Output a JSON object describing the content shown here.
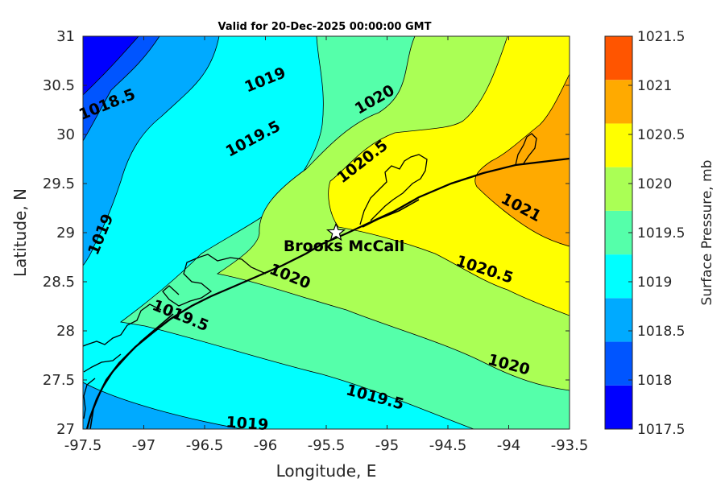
{
  "chart_data": {
    "type": "contour",
    "title": "Valid for 20-Dec-2025 00:00:00 GMT",
    "xlabel": "Longitude, E",
    "ylabel": "Latitude, N",
    "xlim": [
      -97.5,
      -93.5
    ],
    "ylim": [
      27,
      31
    ],
    "xticks": [
      "-97.5",
      "-97",
      "-96.5",
      "-96",
      "-95.5",
      "-95",
      "-94.5",
      "-94",
      "-93.5"
    ],
    "yticks": [
      "27",
      "27.5",
      "28",
      "28.5",
      "29",
      "29.5",
      "30",
      "30.5",
      "31"
    ],
    "contour_levels": [
      1017.5,
      1018,
      1018.5,
      1019,
      1019.5,
      1020,
      1020.5,
      1021,
      1021.5
    ],
    "contour_labels": [
      {
        "text": "1018.5",
        "lon": -97.3,
        "lat": 30.3,
        "angle": -22
      },
      {
        "text": "1019",
        "lon": -96.0,
        "lat": 30.55,
        "angle": -22
      },
      {
        "text": "1019.5",
        "lon": -96.1,
        "lat": 29.95,
        "angle": -28
      },
      {
        "text": "1020",
        "lon": -95.1,
        "lat": 30.35,
        "angle": -30
      },
      {
        "text": "1020.5",
        "lon": -95.2,
        "lat": 29.72,
        "angle": -38
      },
      {
        "text": "1021",
        "lon": -93.9,
        "lat": 29.25,
        "angle": 28
      },
      {
        "text": "1019",
        "lon": -97.35,
        "lat": 28.98,
        "angle": -68
      },
      {
        "text": "1020",
        "lon": -95.8,
        "lat": 28.55,
        "angle": 22
      },
      {
        "text": "1020.5",
        "lon": -94.2,
        "lat": 28.62,
        "angle": 18
      },
      {
        "text": "1019.5",
        "lon": -96.7,
        "lat": 28.15,
        "angle": 22
      },
      {
        "text": "1020",
        "lon": -94.0,
        "lat": 27.65,
        "angle": 15
      },
      {
        "text": "1019.5",
        "lon": -95.1,
        "lat": 27.32,
        "angle": 15
      },
      {
        "text": "1019",
        "lon": -96.15,
        "lat": 27.05,
        "angle": 4
      }
    ],
    "station": {
      "name": "Brooks McCall",
      "lon": -95.42,
      "lat": 29.0
    },
    "colorbar": {
      "label": "Surface Pressure, mb",
      "ticks": [
        "1017.5",
        "1018",
        "1018.5",
        "1019",
        "1019.5",
        "1020",
        "1020.5",
        "1021",
        "1021.5"
      ],
      "colors": [
        "#0000ff",
        "#0055ff",
        "#00aaff",
        "#00ffff",
        "#55ffaa",
        "#aaff55",
        "#ffff00",
        "#ffaa00",
        "#ff5500"
      ]
    }
  }
}
